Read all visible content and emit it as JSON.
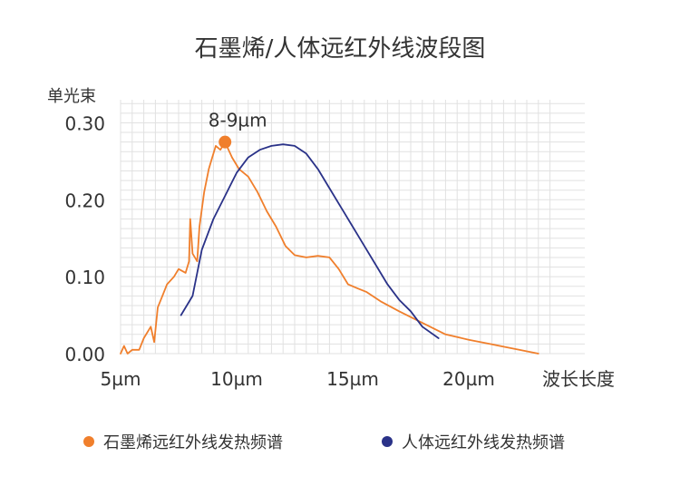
{
  "chart_data": {
    "type": "line",
    "title": "石墨烯/人体远红外线波段图",
    "ylabel": "单光束",
    "xlabel": "波长长度",
    "x_unit": "µm",
    "xlim": [
      5,
      25
    ],
    "ylim": [
      0,
      0.33
    ],
    "x_ticks": [
      {
        "value": 5,
        "label": "5µm"
      },
      {
        "value": 10,
        "label": "10µm"
      },
      {
        "value": 15,
        "label": "15µm"
      },
      {
        "value": 20,
        "label": "20µm"
      }
    ],
    "y_ticks": [
      {
        "value": 0.0,
        "label": "0.00"
      },
      {
        "value": 0.1,
        "label": "0.10"
      },
      {
        "value": 0.2,
        "label": "0.20"
      },
      {
        "value": 0.3,
        "label": "0.30"
      }
    ],
    "grid": true,
    "legend_position": "bottom",
    "annotation": {
      "text": "8-9µm",
      "x": 9.5,
      "y": 0.275
    },
    "series": [
      {
        "name": "石墨烯远红外线发热频谱",
        "color": "#f07f2c",
        "points": [
          [
            5.0,
            0.0
          ],
          [
            5.15,
            0.01
          ],
          [
            5.3,
            0.0
          ],
          [
            5.5,
            0.005
          ],
          [
            5.8,
            0.005
          ],
          [
            6.0,
            0.02
          ],
          [
            6.3,
            0.035
          ],
          [
            6.45,
            0.015
          ],
          [
            6.6,
            0.06
          ],
          [
            6.8,
            0.075
          ],
          [
            7.0,
            0.09
          ],
          [
            7.3,
            0.1
          ],
          [
            7.5,
            0.11
          ],
          [
            7.8,
            0.105
          ],
          [
            7.95,
            0.12
          ],
          [
            8.0,
            0.175
          ],
          [
            8.1,
            0.13
          ],
          [
            8.3,
            0.12
          ],
          [
            8.4,
            0.165
          ],
          [
            8.6,
            0.21
          ],
          [
            8.8,
            0.24
          ],
          [
            8.95,
            0.255
          ],
          [
            9.1,
            0.27
          ],
          [
            9.3,
            0.265
          ],
          [
            9.5,
            0.275
          ],
          [
            9.8,
            0.255
          ],
          [
            10.1,
            0.24
          ],
          [
            10.5,
            0.23
          ],
          [
            10.9,
            0.21
          ],
          [
            11.3,
            0.185
          ],
          [
            11.7,
            0.165
          ],
          [
            12.1,
            0.14
          ],
          [
            12.5,
            0.128
          ],
          [
            13.0,
            0.125
          ],
          [
            13.5,
            0.127
          ],
          [
            14.0,
            0.125
          ],
          [
            14.4,
            0.11
          ],
          [
            14.8,
            0.09
          ],
          [
            15.2,
            0.085
          ],
          [
            15.6,
            0.08
          ],
          [
            16.2,
            0.068
          ],
          [
            17.0,
            0.055
          ],
          [
            18.0,
            0.04
          ],
          [
            19.0,
            0.025
          ],
          [
            20.0,
            0.018
          ],
          [
            21.0,
            0.012
          ],
          [
            22.0,
            0.006
          ],
          [
            23.0,
            0.0
          ]
        ]
      },
      {
        "name": "人体远红外线发热频谱",
        "color": "#2a3288",
        "points": [
          [
            7.6,
            0.05
          ],
          [
            8.1,
            0.075
          ],
          [
            8.5,
            0.135
          ],
          [
            9.0,
            0.175
          ],
          [
            9.5,
            0.205
          ],
          [
            10.0,
            0.235
          ],
          [
            10.5,
            0.255
          ],
          [
            11.0,
            0.265
          ],
          [
            11.5,
            0.27
          ],
          [
            12.0,
            0.272
          ],
          [
            12.5,
            0.27
          ],
          [
            13.0,
            0.26
          ],
          [
            13.5,
            0.24
          ],
          [
            14.0,
            0.215
          ],
          [
            14.5,
            0.19
          ],
          [
            15.0,
            0.165
          ],
          [
            15.5,
            0.14
          ],
          [
            16.0,
            0.115
          ],
          [
            16.5,
            0.09
          ],
          [
            17.0,
            0.07
          ],
          [
            17.5,
            0.055
          ],
          [
            18.0,
            0.035
          ],
          [
            18.7,
            0.02
          ]
        ]
      }
    ]
  }
}
